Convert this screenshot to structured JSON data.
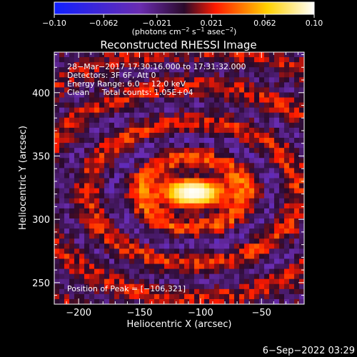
{
  "chart_data": {
    "type": "heatmap",
    "title": "Reconstructed RHESSI Image",
    "xlabel": "Heliocentric X (arcsec)",
    "ylabel": "Heliocentric Y (arcsec)",
    "xlim": [
      -220,
      -15
    ],
    "ylim": [
      233,
      432
    ],
    "x_ticks": [
      -200,
      -150,
      -100,
      -50
    ],
    "y_ticks": [
      250,
      300,
      350,
      400
    ],
    "x_tick_labels": [
      "−200",
      "−150",
      "−100",
      "−50"
    ],
    "y_tick_labels": [
      "250",
      "300",
      "350",
      "400"
    ],
    "colorbar": {
      "range": [
        -0.1,
        0.1
      ],
      "ticks": [
        -0.1,
        -0.062,
        -0.021,
        0.021,
        0.062,
        0.1
      ],
      "tick_labels": [
        "−0.10",
        "−0.062",
        "−0.021",
        "0.021",
        "0.062",
        "0.10"
      ],
      "units_text": "(photons cm",
      "units_parts": [
        "(photons cm",
        "−2",
        " s",
        "−1",
        " asec",
        "−2",
        ")"
      ],
      "colors": [
        "#1020ff",
        "#6a2cb0",
        "#2a0a2a",
        "#ff1a00",
        "#ffd100",
        "#ffffff"
      ]
    },
    "annotations": [
      "28−Mar−2017 17:30:16.000 to 17:31:32.000",
      "Detectors: 3F 6F, Att 0",
      "Energy Range: 6.0 − 12.0 keV",
      "Clean     Total counts: 1.05E+04"
    ],
    "peak_label": "Position of Peak = [−106,321]",
    "peak": {
      "x": -106,
      "y": 321
    },
    "source": {
      "x": -106,
      "y": 321,
      "sigma_x": 22,
      "sigma_y": 9
    },
    "ring_spacing": 28
  },
  "footer": {
    "timestamp": "6−Sep−2022 03:29"
  }
}
